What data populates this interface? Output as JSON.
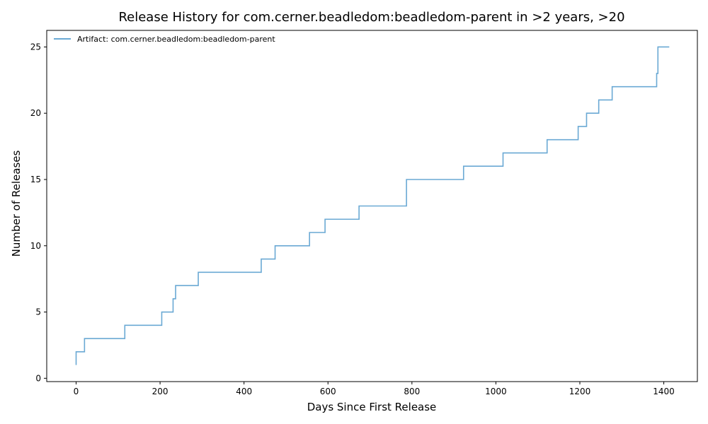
{
  "chart_data": {
    "type": "line",
    "step": "post",
    "title": "Release History for com.cerner.beadledom:beadledom-parent in >2 years, >20",
    "xlabel": "Days Since First Release",
    "ylabel": "Number of Releases",
    "xlim": [
      -70,
      1480
    ],
    "ylim": [
      -0.25,
      26.25
    ],
    "xticks": [
      0,
      200,
      400,
      600,
      800,
      1000,
      1200,
      1400
    ],
    "yticks": [
      0,
      5,
      10,
      15,
      20,
      25
    ],
    "legend_position": "top-left",
    "grid": false,
    "series": [
      {
        "name": "Artifact: com.cerner.beadledom:beadledom-parent",
        "color": "#6aa9d4",
        "points": [
          [
            0,
            1
          ],
          [
            0,
            2
          ],
          [
            20,
            3
          ],
          [
            116,
            4
          ],
          [
            204,
            5
          ],
          [
            231,
            6
          ],
          [
            237,
            7
          ],
          [
            291,
            8
          ],
          [
            441,
            9
          ],
          [
            474,
            10
          ],
          [
            556,
            11
          ],
          [
            593,
            12
          ],
          [
            674,
            13
          ],
          [
            787,
            15
          ],
          [
            923,
            16
          ],
          [
            1017,
            17
          ],
          [
            1122,
            18
          ],
          [
            1196,
            19
          ],
          [
            1216,
            20
          ],
          [
            1245,
            21
          ],
          [
            1277,
            22
          ],
          [
            1383,
            23
          ],
          [
            1386,
            25
          ],
          [
            1413,
            25
          ]
        ]
      }
    ]
  }
}
